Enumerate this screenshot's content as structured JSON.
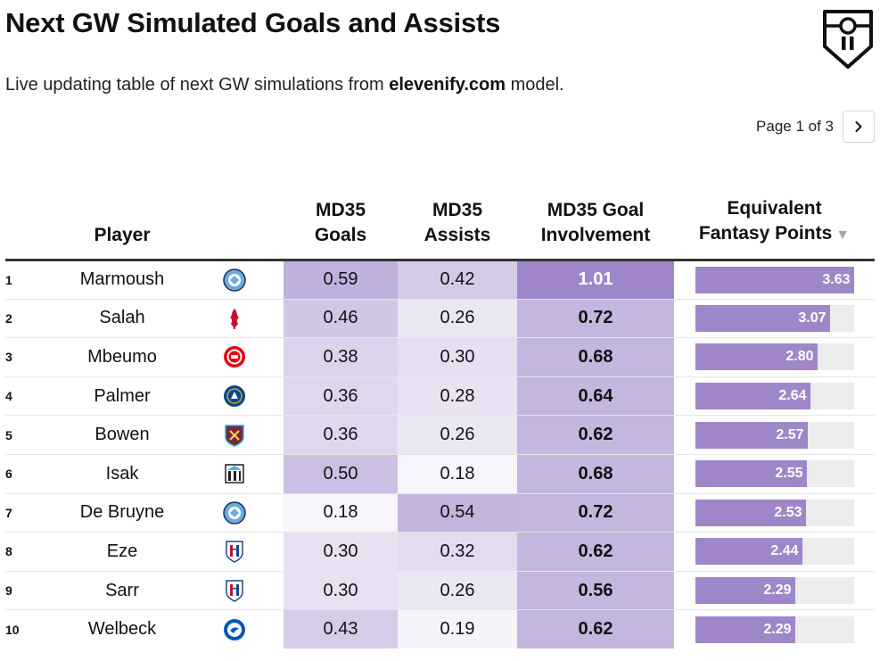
{
  "header": {
    "title": "Next GW Simulated Goals and Assists",
    "subtitle_prefix": "Live updating table of next GW simulations from ",
    "subtitle_brand": "elevenify.com",
    "subtitle_suffix": " model."
  },
  "pager": {
    "text": "Page 1 of 3",
    "next_icon": "chevron-right-icon"
  },
  "logo": {
    "icon": "elevenify-shield-icon",
    "mark": "11"
  },
  "colors": {
    "accent": "#9f86c9",
    "bar_track": "#ececec",
    "cell_scale_low": "#f7f5fb",
    "cell_scale_high": "#9f86c9"
  },
  "chart_data": {
    "type": "table",
    "columns": {
      "player": "Player",
      "goals_l1": "MD35",
      "goals_l2": "Goals",
      "assists_l1": "MD35",
      "assists_l2": "Assists",
      "gi_l1": "MD35 Goal",
      "gi_l2": "Involvement",
      "pts_l1": "Equivalent",
      "pts_l2": "Fantasy Points"
    },
    "sort": {
      "column": "Equivalent Fantasy Points",
      "direction": "desc"
    },
    "bar_max": 3.63,
    "rows": [
      {
        "rank": "1",
        "player": "Marmoush",
        "team": "Man City",
        "badge": "man-city-badge-icon",
        "goals": "0.59",
        "assists": "0.42",
        "gi": "1.01",
        "pts": "3.63"
      },
      {
        "rank": "2",
        "player": "Salah",
        "team": "Liverpool",
        "badge": "liverpool-badge-icon",
        "goals": "0.46",
        "assists": "0.26",
        "gi": "0.72",
        "pts": "3.07"
      },
      {
        "rank": "3",
        "player": "Mbeumo",
        "team": "Brentford",
        "badge": "brentford-badge-icon",
        "goals": "0.38",
        "assists": "0.30",
        "gi": "0.68",
        "pts": "2.80"
      },
      {
        "rank": "4",
        "player": "Palmer",
        "team": "Chelsea",
        "badge": "chelsea-badge-icon",
        "goals": "0.36",
        "assists": "0.28",
        "gi": "0.64",
        "pts": "2.64"
      },
      {
        "rank": "5",
        "player": "Bowen",
        "team": "West Ham",
        "badge": "west-ham-badge-icon",
        "goals": "0.36",
        "assists": "0.26",
        "gi": "0.62",
        "pts": "2.57"
      },
      {
        "rank": "6",
        "player": "Isak",
        "team": "Newcastle",
        "badge": "newcastle-badge-icon",
        "goals": "0.50",
        "assists": "0.18",
        "gi": "0.68",
        "pts": "2.55"
      },
      {
        "rank": "7",
        "player": "De Bruyne",
        "team": "Man City",
        "badge": "man-city-badge-icon",
        "goals": "0.18",
        "assists": "0.54",
        "gi": "0.72",
        "pts": "2.53"
      },
      {
        "rank": "8",
        "player": "Eze",
        "team": "Crystal Palace",
        "badge": "crystal-palace-badge-icon",
        "goals": "0.30",
        "assists": "0.32",
        "gi": "0.62",
        "pts": "2.44"
      },
      {
        "rank": "9",
        "player": "Sarr",
        "team": "Crystal Palace",
        "badge": "crystal-palace-badge-icon",
        "goals": "0.30",
        "assists": "0.26",
        "gi": "0.56",
        "pts": "2.29"
      },
      {
        "rank": "10",
        "player": "Welbeck",
        "team": "Brighton",
        "badge": "brighton-badge-icon",
        "goals": "0.43",
        "assists": "0.19",
        "gi": "0.62",
        "pts": "2.29"
      }
    ]
  }
}
